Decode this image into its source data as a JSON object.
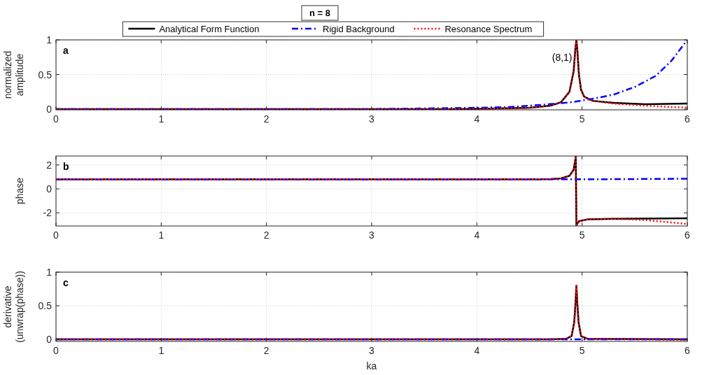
{
  "chart_data": [
    {
      "type": "line",
      "title": "n = 8",
      "ylabel": "normalized\namplitude",
      "annotations": [
        "a",
        {
          "text": "(8,1)",
          "x": 4.946,
          "y": 1
        }
      ],
      "legend": "top",
      "grid": true,
      "xlim": [
        0,
        6
      ],
      "xticks": [
        0,
        1,
        2,
        3,
        4,
        5,
        6
      ],
      "ylim": [
        -0.01,
        1
      ],
      "yticks": [
        0,
        0.5,
        1
      ],
      "series": [
        {
          "name": "Analytical Form Function",
          "color": "#000000",
          "line_style": "solid",
          "x": [
            0,
            3,
            3.8,
            4.2,
            4.5,
            4.7,
            4.8,
            4.88,
            4.92,
            4.935,
            4.946,
            4.955,
            4.97,
            4.99,
            5.02,
            5.1,
            5.3,
            5.6,
            6
          ],
          "values": [
            0,
            0,
            0,
            0.01,
            0.02,
            0.05,
            0.1,
            0.25,
            0.55,
            0.85,
            1,
            0.85,
            0.5,
            0.28,
            0.18,
            0.12,
            0.09,
            0.07,
            0.08
          ]
        },
        {
          "name": "Rigid Background",
          "color": "#0000ff",
          "line_style": "dashed",
          "x": [
            0,
            3,
            3.5,
            4,
            4.3,
            4.6,
            4.9,
            5.1,
            5.3,
            5.5,
            5.7,
            5.85,
            6
          ],
          "values": [
            0,
            0,
            0.01,
            0.02,
            0.03,
            0.06,
            0.1,
            0.15,
            0.21,
            0.32,
            0.48,
            0.7,
            1
          ]
        },
        {
          "name": "Resonance Spectrum",
          "color": "#ff0000",
          "line_style": "dotted",
          "x": [
            0,
            3,
            3.8,
            4.2,
            4.5,
            4.7,
            4.8,
            4.88,
            4.92,
            4.935,
            4.946,
            4.955,
            4.97,
            4.99,
            5.02,
            5.1,
            5.3,
            5.6,
            6
          ],
          "values": [
            0,
            0,
            0,
            0.01,
            0.02,
            0.05,
            0.1,
            0.25,
            0.55,
            0.85,
            1,
            0.85,
            0.5,
            0.28,
            0.18,
            0.12,
            0.08,
            0.05,
            0.02
          ]
        }
      ]
    },
    {
      "type": "line",
      "ylabel": "phase",
      "annotations": [
        "b"
      ],
      "grid": true,
      "xlim": [
        0,
        6
      ],
      "xticks": [
        0,
        1,
        2,
        3,
        4,
        5,
        6
      ],
      "ylim": [
        -3.1,
        2.75
      ],
      "yticks": [
        -2,
        0,
        2
      ],
      "series": [
        {
          "color": "#000000",
          "line_style": "solid",
          "x": [
            0,
            4.5,
            4.7,
            4.8,
            4.88,
            4.92,
            4.94,
            4.946,
            4.97,
            5.05,
            5.3,
            6
          ],
          "values": [
            0.8,
            0.8,
            0.82,
            0.88,
            1.1,
            1.6,
            2.7,
            -3.05,
            -2.7,
            -2.55,
            -2.5,
            -2.45
          ]
        },
        {
          "color": "#0000ff",
          "line_style": "dashed",
          "x": [
            0,
            4,
            5,
            6
          ],
          "values": [
            0.8,
            0.8,
            0.8,
            0.85
          ]
        },
        {
          "color": "#ff0000",
          "line_style": "dotted",
          "x": [
            0,
            4.5,
            4.7,
            4.8,
            4.88,
            4.92,
            4.94,
            4.946,
            4.97,
            5.05,
            5.3,
            5.6,
            6
          ],
          "values": [
            0.8,
            0.8,
            0.82,
            0.88,
            1.1,
            1.6,
            2.7,
            -3.05,
            -2.7,
            -2.55,
            -2.5,
            -2.6,
            -2.93
          ]
        }
      ]
    },
    {
      "type": "line",
      "xlabel": "ka",
      "ylabel": "derivative\n(unwrap(phase))",
      "annotations": [
        "c"
      ],
      "grid": true,
      "xlim": [
        0,
        6
      ],
      "xticks": [
        0,
        1,
        2,
        3,
        4,
        5,
        6
      ],
      "ylim": [
        -0.03,
        1
      ],
      "yticks": [
        0,
        0.5,
        1
      ],
      "series": [
        {
          "color": "#000000",
          "line_style": "solid",
          "x": [
            0,
            4.7,
            4.85,
            4.9,
            4.925,
            4.938,
            4.946,
            4.954,
            4.967,
            4.99,
            5.05,
            6
          ],
          "values": [
            0,
            0,
            0.01,
            0.05,
            0.25,
            0.55,
            0.8,
            0.55,
            0.25,
            0.05,
            0.01,
            0
          ]
        },
        {
          "color": "#0000ff",
          "line_style": "dashed",
          "x": [
            0,
            6
          ],
          "values": [
            0,
            0
          ]
        },
        {
          "color": "#ff0000",
          "line_style": "dotted",
          "x": [
            0,
            4.7,
            4.85,
            4.9,
            4.925,
            4.938,
            4.946,
            4.954,
            4.967,
            4.99,
            5.05,
            5.6,
            6
          ],
          "values": [
            0,
            0,
            0.01,
            0.05,
            0.25,
            0.55,
            0.8,
            0.55,
            0.25,
            0.05,
            0.01,
            0,
            -0.01
          ]
        }
      ]
    }
  ]
}
